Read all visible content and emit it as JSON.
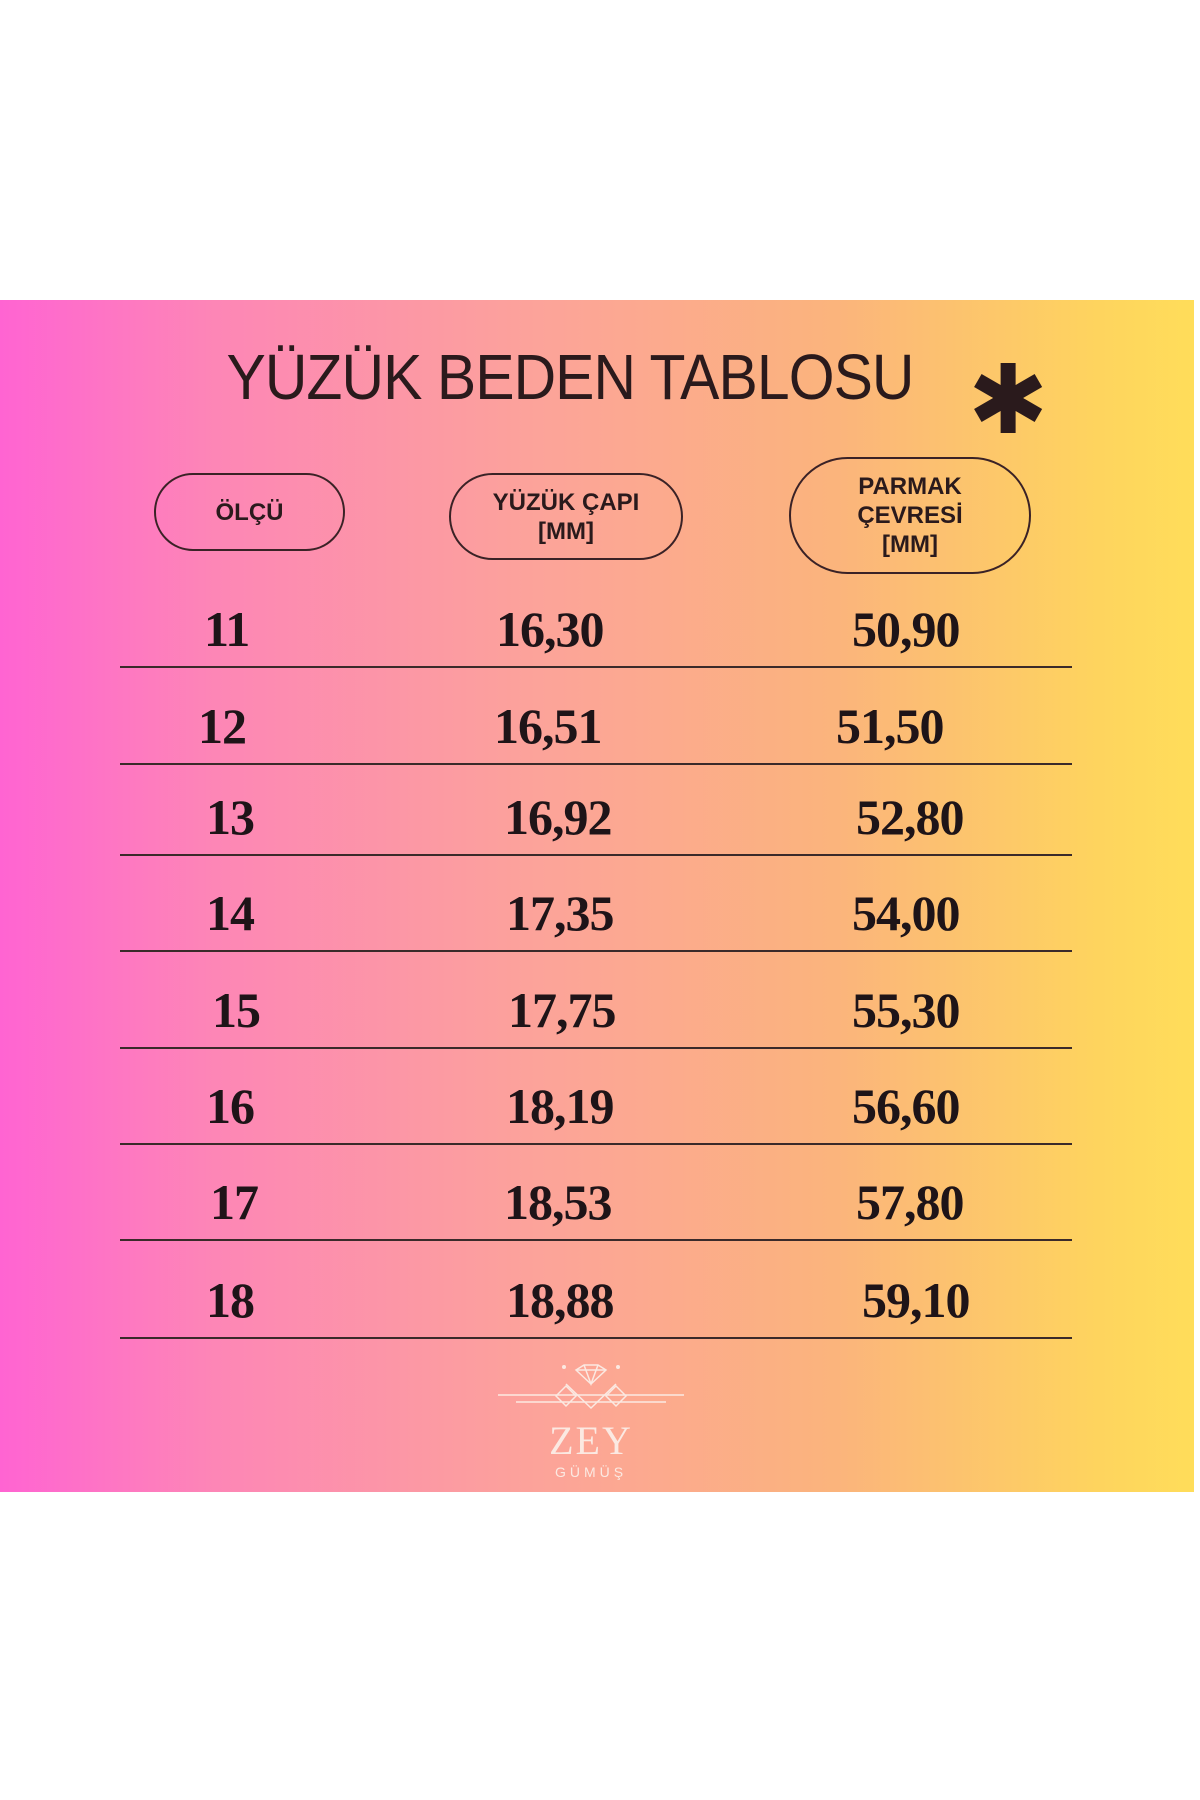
{
  "title": "YÜZÜK BEDEN TABLOSU",
  "decoration_icon": "asterisk-icon",
  "headers": {
    "size": "ÖLÇÜ",
    "diameter_line1": "YÜZÜK ÇAPI",
    "diameter_line2": "[MM]",
    "circ_line1": "PARMAK",
    "circ_line2": "ÇEVRESİ",
    "circ_line3": "[MM]"
  },
  "rows": [
    {
      "size": "11",
      "diameter": "16,30",
      "circumference": "50,90"
    },
    {
      "size": "12",
      "diameter": "16,51",
      "circumference": "51,50"
    },
    {
      "size": "13",
      "diameter": "16,92",
      "circumference": "52,80"
    },
    {
      "size": "14",
      "diameter": "17,35",
      "circumference": "54,00"
    },
    {
      "size": "15",
      "diameter": "17,75",
      "circumference": "55,30"
    },
    {
      "size": "16",
      "diameter": "18,19",
      "circumference": "56,60"
    },
    {
      "size": "17",
      "diameter": "18,53",
      "circumference": "57,80"
    },
    {
      "size": "18",
      "diameter": "18,88",
      "circumference": "59,10"
    }
  ],
  "logo": {
    "brand": "ZEY",
    "sub": "GÜMÜŞ",
    "icon": "diamond-ring-icon"
  },
  "colors": {
    "gradient_left": "#ff64d2",
    "gradient_mid": "#fca39a",
    "gradient_right": "#ffdd5a",
    "text": "#2a1a1c"
  }
}
